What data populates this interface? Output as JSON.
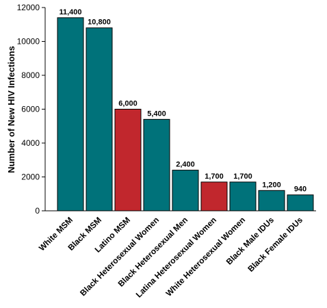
{
  "chart_data": {
    "type": "bar",
    "title": "",
    "xlabel": "",
    "ylabel": "Number of New HIV Infections",
    "ylim": [
      0,
      12000
    ],
    "yticks": [
      0,
      2000,
      4000,
      6000,
      8000,
      10000,
      12000
    ],
    "grid": false,
    "categories": [
      "White MSM",
      "Black MSM",
      "Latino MSM",
      "Black Heterosexual Women",
      "Black Heterosexual Men",
      "Latina Heterosexual Women",
      "White Heterosexual Women",
      "Black Male IDUs",
      "Black Female IDUs"
    ],
    "values": [
      11400,
      10800,
      6000,
      5400,
      2400,
      1700,
      1700,
      1200,
      940
    ],
    "value_labels": [
      "11,400",
      "10,800",
      "6,000",
      "5,400",
      "2,400",
      "1,700",
      "1,700",
      "1,200",
      "940"
    ],
    "bar_colors": [
      "#00727a",
      "#00727a",
      "#c1272d",
      "#00727a",
      "#00727a",
      "#c1272d",
      "#00727a",
      "#00727a",
      "#00727a"
    ]
  }
}
